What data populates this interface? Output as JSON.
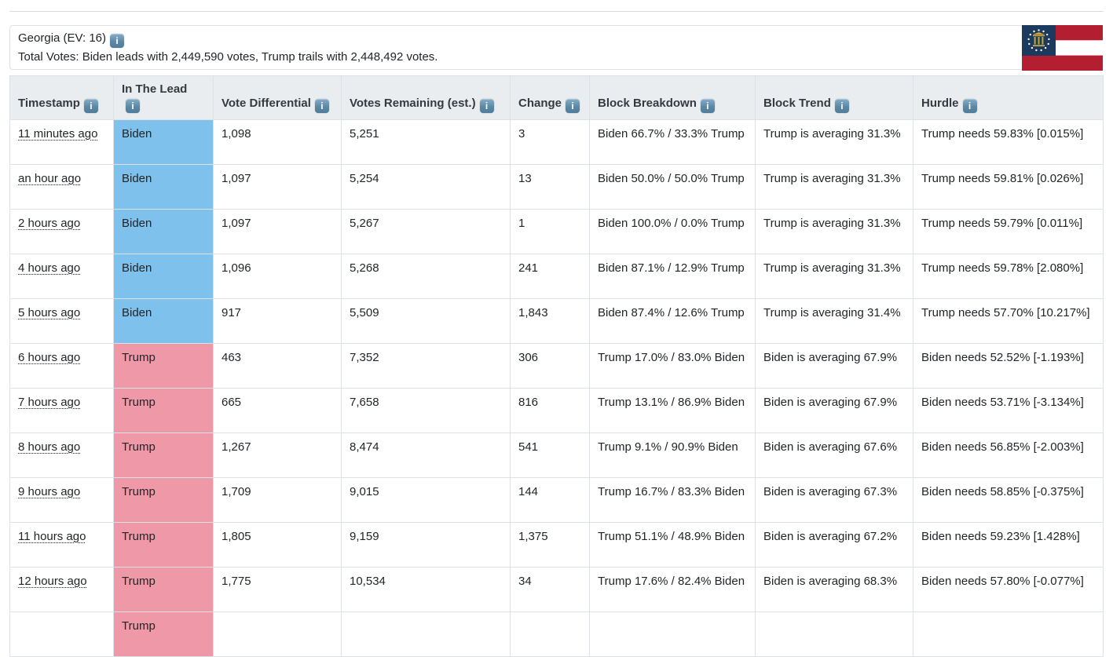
{
  "panel": {
    "title": "Georgia (EV: 16)",
    "subtitle": "Total Votes: Biden leads with 2,449,590 votes, Trump trails with 2,448,492 votes."
  },
  "icons": {
    "info_glyph": "i",
    "flag": "georgia-state-flag"
  },
  "colors": {
    "biden": "#7dc1ec",
    "trump": "#ef99a8",
    "header_bg": "#e9edf0",
    "border": "#dee2e6"
  },
  "table": {
    "columns": [
      {
        "key": "timestamp",
        "label": "Timestamp",
        "info": true
      },
      {
        "key": "lead",
        "label": "In The Lead",
        "info": true
      },
      {
        "key": "differential",
        "label": "Vote Differential",
        "info": true
      },
      {
        "key": "remaining",
        "label": "Votes Remaining (est.)",
        "info": true
      },
      {
        "key": "change",
        "label": "Change",
        "info": true
      },
      {
        "key": "breakdown",
        "label": "Block Breakdown",
        "info": true
      },
      {
        "key": "trend",
        "label": "Block Trend",
        "info": true
      },
      {
        "key": "hurdle",
        "label": "Hurdle",
        "info": true
      }
    ],
    "rows": [
      {
        "timestamp": "11 minutes ago",
        "lead": "Biden",
        "differential": "1,098",
        "remaining": "5,251",
        "change": "3",
        "breakdown": "Biden 66.7% / 33.3% Trump",
        "trend": "Trump is averaging 31.3%",
        "hurdle": "Trump needs 59.83% [0.015%]"
      },
      {
        "timestamp": "an hour ago",
        "lead": "Biden",
        "differential": "1,097",
        "remaining": "5,254",
        "change": "13",
        "breakdown": "Biden 50.0% / 50.0% Trump",
        "trend": "Trump is averaging 31.3%",
        "hurdle": "Trump needs 59.81% [0.026%]"
      },
      {
        "timestamp": "2 hours ago",
        "lead": "Biden",
        "differential": "1,097",
        "remaining": "5,267",
        "change": "1",
        "breakdown": "Biden 100.0% / 0.0% Trump",
        "trend": "Trump is averaging 31.3%",
        "hurdle": "Trump needs 59.79% [0.011%]"
      },
      {
        "timestamp": "4 hours ago",
        "lead": "Biden",
        "differential": "1,096",
        "remaining": "5,268",
        "change": "241",
        "breakdown": "Biden 87.1% / 12.9% Trump",
        "trend": "Trump is averaging 31.3%",
        "hurdle": "Trump needs 59.78% [2.080%]"
      },
      {
        "timestamp": "5 hours ago",
        "lead": "Biden",
        "differential": "917",
        "remaining": "5,509",
        "change": "1,843",
        "breakdown": "Biden 87.4% / 12.6% Trump",
        "trend": "Trump is averaging 31.4%",
        "hurdle": "Trump needs 57.70% [10.217%]"
      },
      {
        "timestamp": "6 hours ago",
        "lead": "Trump",
        "differential": "463",
        "remaining": "7,352",
        "change": "306",
        "breakdown": "Trump 17.0% / 83.0% Biden",
        "trend": "Biden is averaging 67.9%",
        "hurdle": "Biden needs 52.52% [-1.193%]"
      },
      {
        "timestamp": "7 hours ago",
        "lead": "Trump",
        "differential": "665",
        "remaining": "7,658",
        "change": "816",
        "breakdown": "Trump 13.1% / 86.9% Biden",
        "trend": "Biden is averaging 67.9%",
        "hurdle": "Biden needs 53.71% [-3.134%]"
      },
      {
        "timestamp": "8 hours ago",
        "lead": "Trump",
        "differential": "1,267",
        "remaining": "8,474",
        "change": "541",
        "breakdown": "Trump 9.1% / 90.9% Biden",
        "trend": "Biden is averaging 67.6%",
        "hurdle": "Biden needs 56.85% [-2.003%]"
      },
      {
        "timestamp": "9 hours ago",
        "lead": "Trump",
        "differential": "1,709",
        "remaining": "9,015",
        "change": "144",
        "breakdown": "Trump 16.7% / 83.3% Biden",
        "trend": "Biden is averaging 67.3%",
        "hurdle": "Biden needs 58.85% [-0.375%]"
      },
      {
        "timestamp": "11 hours ago",
        "lead": "Trump",
        "differential": "1,805",
        "remaining": "9,159",
        "change": "1,375",
        "breakdown": "Trump 51.1% / 48.9% Biden",
        "trend": "Biden is averaging 67.2%",
        "hurdle": "Biden needs 59.23% [1.428%]"
      },
      {
        "timestamp": "12 hours ago",
        "lead": "Trump",
        "differential": "1,775",
        "remaining": "10,534",
        "change": "34",
        "breakdown": "Trump 17.6% / 82.4% Biden",
        "trend": "Biden is averaging 68.3%",
        "hurdle": "Biden needs 57.80% [-0.077%]"
      },
      {
        "timestamp": "",
        "lead": "Trump",
        "differential": "",
        "remaining": "",
        "change": "",
        "breakdown": "",
        "trend": "",
        "hurdle": ""
      }
    ]
  }
}
